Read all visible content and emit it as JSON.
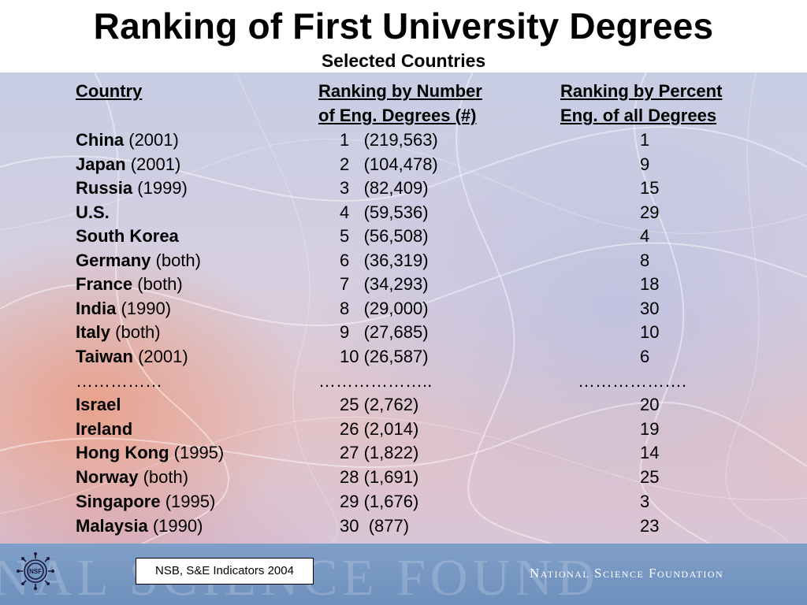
{
  "title": "Ranking of First University Degrees",
  "subtitle": "Selected Countries",
  "headers": {
    "country": "Country",
    "number_line1": "Ranking by Number",
    "number_line2": "of Eng. Degrees (#)",
    "percent_line1": "Ranking by Percent",
    "percent_line2": "Eng. of all Degrees"
  },
  "rows": [
    {
      "country": "China",
      "note": " (2001)",
      "number_rank": "1   (219,563)",
      "percent_rank": "1"
    },
    {
      "country": "Japan",
      "note": " (2001)",
      "number_rank": "2   (104,478)",
      "percent_rank": "9"
    },
    {
      "country": "Russia",
      "note": " (1999)",
      "number_rank": "3   (82,409)",
      "percent_rank": "15"
    },
    {
      "country": "U.S.",
      "note": "",
      "number_rank": "4   (59,536)",
      "percent_rank": "29"
    },
    {
      "country": "South Korea",
      "note": "",
      "number_rank": "5   (56,508)",
      "percent_rank": "4"
    },
    {
      "country": "Germany",
      "note": " (both)",
      "number_rank": "6   (36,319)",
      "percent_rank": "8"
    },
    {
      "country": "France",
      "note": " (both)",
      "number_rank": "7   (34,293)",
      "percent_rank": "18"
    },
    {
      "country": "India",
      "note": " (1990)",
      "number_rank": "8   (29,000)",
      "percent_rank": "30"
    },
    {
      "country": "Italy",
      "note": " (both)",
      "number_rank": "9   (27,685)",
      "percent_rank": "10"
    },
    {
      "country": "Taiwan",
      "note": " (2001)",
      "number_rank": "10 (26,587)",
      "percent_rank": "6"
    }
  ],
  "separator": {
    "country": "……………",
    "number": "………………..",
    "percent": "………………."
  },
  "rows2": [
    {
      "country": "Israel",
      "note": "",
      "number_rank": "25 (2,762)",
      "percent_rank": "20"
    },
    {
      "country": "Ireland",
      "note": "",
      "number_rank": "26 (2,014)",
      "percent_rank": "19"
    },
    {
      "country": "Hong Kong",
      "note": " (1995)",
      "number_rank": "27 (1,822)",
      "percent_rank": "14"
    },
    {
      "country": "Norway",
      "note": " (both)",
      "number_rank": "28 (1,691)",
      "percent_rank": "25"
    },
    {
      "country": "Singapore",
      "note": " (1995)",
      "number_rank": "29 (1,676)",
      "percent_rank": "3"
    },
    {
      "country": "Malaysia",
      "note": " (1990)",
      "number_rank": "30  (877)",
      "percent_rank": "23"
    }
  ],
  "footer": {
    "source": "NSB, S&E Indicators 2004",
    "organization": "National Science Foundation",
    "watermark": "NAL SCIENCE FOUND",
    "logo_text": "NSF"
  },
  "colors": {
    "footer_bar": "#7f9fc8",
    "text": "#000000"
  }
}
